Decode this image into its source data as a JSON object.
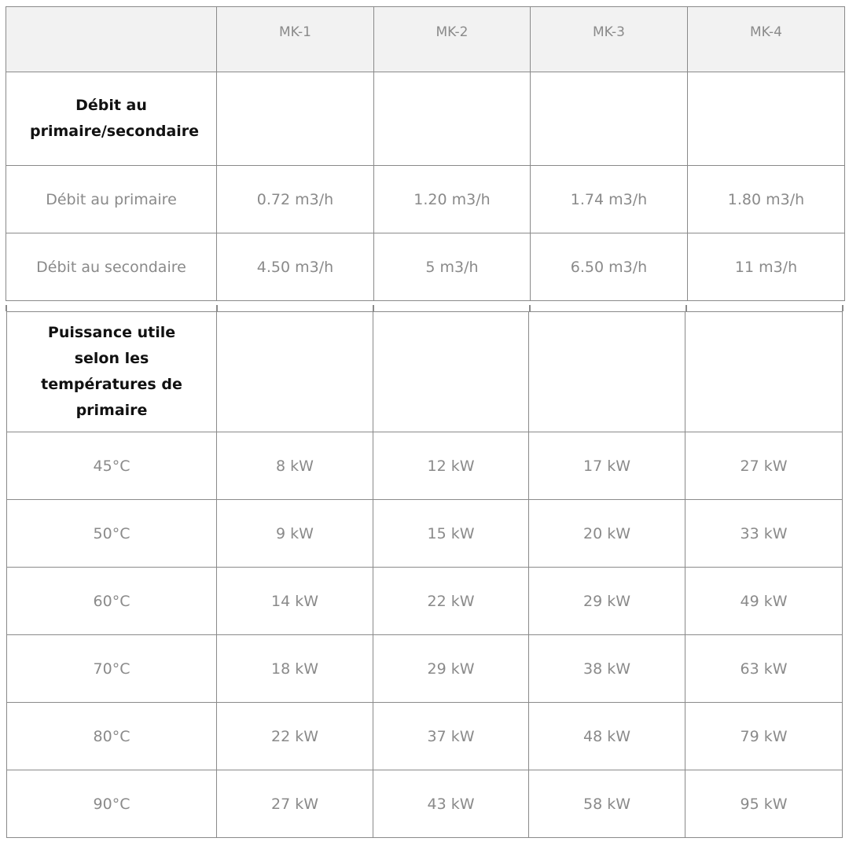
{
  "columns": [
    "",
    "MK-1",
    "MK-2",
    "MK-3",
    "MK-4"
  ],
  "flow_section": {
    "title": "Débit au primaire/secondaire",
    "rows": [
      {
        "label": "Débit au primaire",
        "values": [
          "0.72 m3/h",
          "1.20 m3/h",
          "1.74 m3/h",
          "1.80 m3/h"
        ]
      },
      {
        "label": "Débit au secondaire",
        "values": [
          "4.50 m3/h",
          "5 m3/h",
          "6.50 m3/h",
          "11 m3/h"
        ]
      }
    ]
  },
  "power_section": {
    "title": "Puissance utile selon les températures de primaire",
    "rows": [
      {
        "label": "45°C",
        "values": [
          "8 kW",
          "12 kW",
          "17 kW",
          "27 kW"
        ]
      },
      {
        "label": "50°C",
        "values": [
          "9 kW",
          "15 kW",
          "20 kW",
          "33 kW"
        ]
      },
      {
        "label": "60°C",
        "values": [
          "14 kW",
          "22 kW",
          "29 kW",
          "49 kW"
        ]
      },
      {
        "label": "70°C",
        "values": [
          "18 kW",
          "29 kW",
          "38 kW",
          "63 kW"
        ]
      },
      {
        "label": "80°C",
        "values": [
          "22 kW",
          "37 kW",
          "48 kW",
          "79 kW"
        ]
      },
      {
        "label": "90°C",
        "values": [
          "27 kW",
          "43 kW",
          "58 kW",
          "95 kW"
        ]
      }
    ]
  }
}
